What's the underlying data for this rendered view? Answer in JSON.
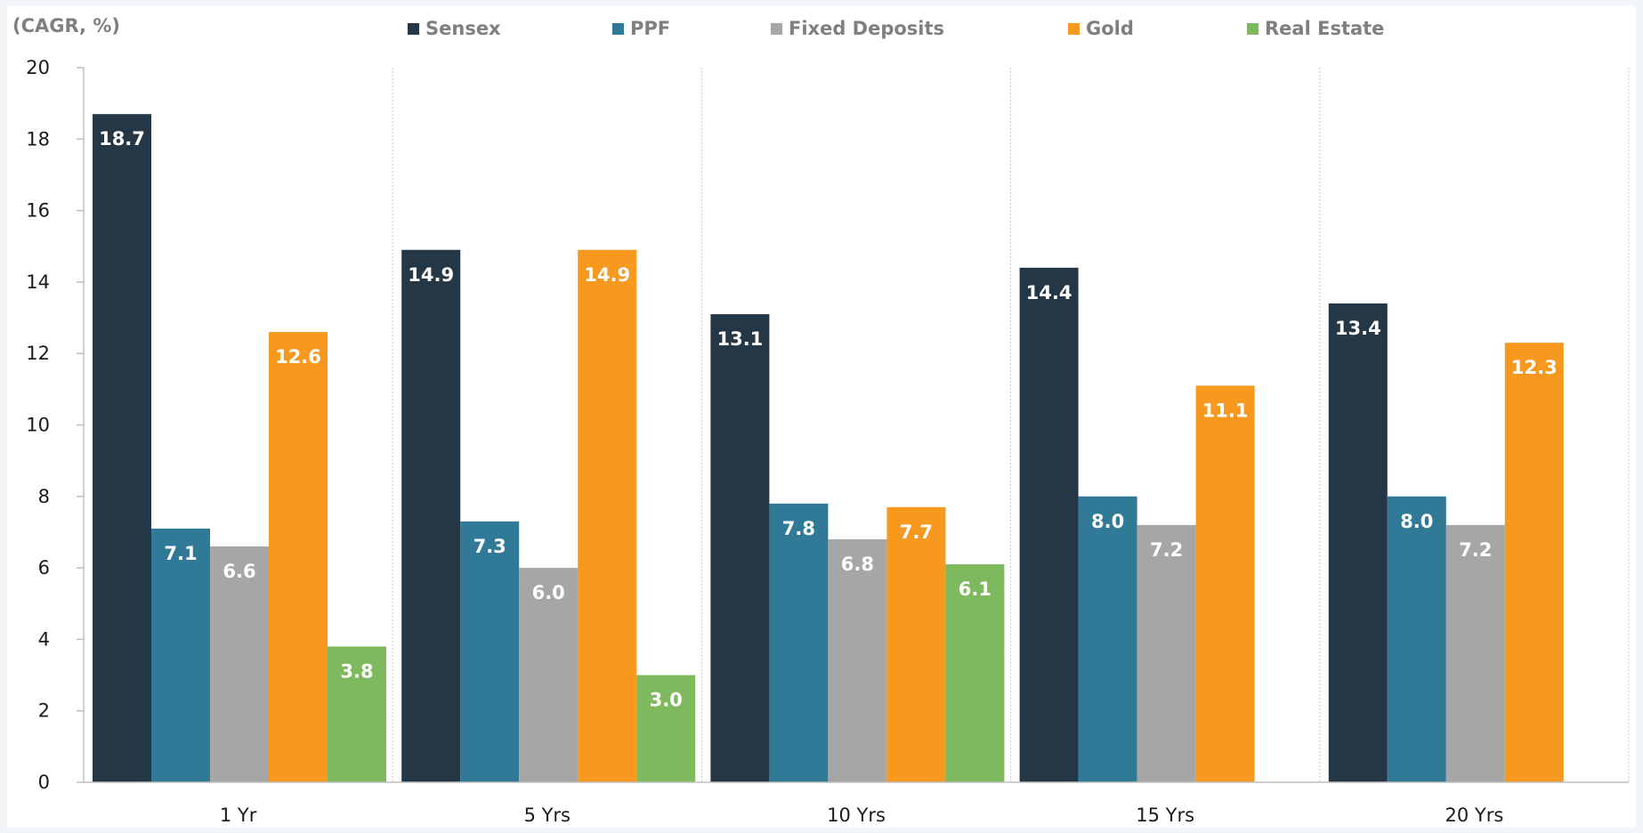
{
  "chart_data": {
    "type": "bar",
    "unit_label": "(CAGR, %)",
    "categories": [
      "1 Yr",
      "5 Yrs",
      "10 Yrs",
      "15 Yrs",
      "20 Yrs"
    ],
    "series": [
      {
        "name": "Sensex",
        "color": "#243746",
        "values": [
          18.7,
          14.9,
          13.1,
          14.4,
          13.4
        ],
        "labels": [
          "18.7",
          "14.9",
          "13.1",
          "14.4",
          "13.4"
        ]
      },
      {
        "name": "PPF",
        "color": "#317a97",
        "values": [
          7.1,
          7.3,
          7.8,
          8.0,
          8.0
        ],
        "labels": [
          "7.1",
          "7.3",
          "7.8",
          "8.0",
          "8.0"
        ]
      },
      {
        "name": "Fixed Deposits",
        "color": "#a6a6a6",
        "values": [
          6.6,
          6.0,
          6.8,
          7.2,
          7.2
        ],
        "labels": [
          "6.6",
          "6.0",
          "6.8",
          "7.2",
          "7.2"
        ]
      },
      {
        "name": "Gold",
        "color": "#f7981f",
        "values": [
          12.6,
          14.9,
          7.7,
          11.1,
          12.3
        ],
        "labels": [
          "12.6",
          "14.9",
          "7.7",
          "11.1",
          "12.3"
        ]
      },
      {
        "name": "Real Estate",
        "color": "#7fb95e",
        "values": [
          3.8,
          3.0,
          6.1,
          null,
          null
        ],
        "labels": [
          "3.8",
          "3.0",
          "6.1",
          null,
          null
        ]
      }
    ],
    "ylim": [
      0,
      20
    ],
    "yticks": [
      0,
      2,
      4,
      6,
      8,
      10,
      12,
      14,
      16,
      18,
      20
    ],
    "grid": false,
    "category_separators": true,
    "legend_position": "top"
  }
}
